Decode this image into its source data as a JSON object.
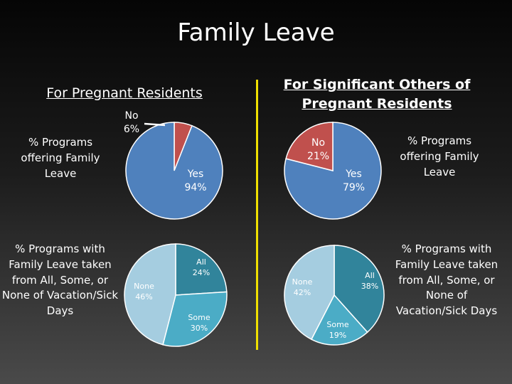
{
  "title": "Family Leave",
  "sections": {
    "left": "For Pregnant Residents",
    "right": "For Significant Others of Pregnant Residents"
  },
  "side_labels": {
    "left_top": "% Programs offering Family Leave",
    "left_bottom": "% Programs with Family Leave taken from All, Some, or None of Vacation/Sick Days",
    "right_top": "% Programs offering Family Leave",
    "right_bottom": "% Programs with Family Leave taken from All, Some, or None of Vacation/Sick Days"
  },
  "colors": {
    "yes": "#4f81bd",
    "no": "#c0504d",
    "all": "#31849b",
    "some": "#4bacc6",
    "none": "#a5cde0"
  },
  "chart_data": [
    {
      "type": "pie",
      "group": "For Pregnant Residents",
      "title": "% Programs offering Family Leave",
      "slices": [
        {
          "label": "No",
          "value": 6,
          "text": "No\n6%",
          "color": "#c0504d"
        },
        {
          "label": "Yes",
          "value": 94,
          "text": "Yes\n94%",
          "color": "#4f81bd"
        }
      ]
    },
    {
      "type": "pie",
      "group": "For Significant Others of Pregnant Residents",
      "title": "% Programs offering Family Leave",
      "slices": [
        {
          "label": "Yes",
          "value": 79,
          "text": "Yes\n79%",
          "color": "#4f81bd"
        },
        {
          "label": "No",
          "value": 21,
          "text": "No\n21%",
          "color": "#c0504d"
        }
      ]
    },
    {
      "type": "pie",
      "group": "For Pregnant Residents",
      "title": "% Programs with Family Leave taken from All, Some, or None of Vacation/Sick Days",
      "slices": [
        {
          "label": "All",
          "value": 24,
          "text": "All\n24%",
          "color": "#31849b"
        },
        {
          "label": "Some",
          "value": 30,
          "text": "Some\n30%",
          "color": "#4bacc6"
        },
        {
          "label": "None",
          "value": 46,
          "text": "None\n46%",
          "color": "#a5cde0"
        }
      ]
    },
    {
      "type": "pie",
      "group": "For Significant Others of Pregnant Residents",
      "title": "% Programs with Family Leave taken from All, Some, or None of Vacation/Sick Days",
      "slices": [
        {
          "label": "All",
          "value": 38,
          "text": "All\n38%",
          "color": "#31849b"
        },
        {
          "label": "Some",
          "value": 19,
          "text": "Some\n19%",
          "color": "#4bacc6"
        },
        {
          "label": "None",
          "value": 42,
          "text": "None\n42%",
          "color": "#a5cde0"
        }
      ]
    }
  ]
}
